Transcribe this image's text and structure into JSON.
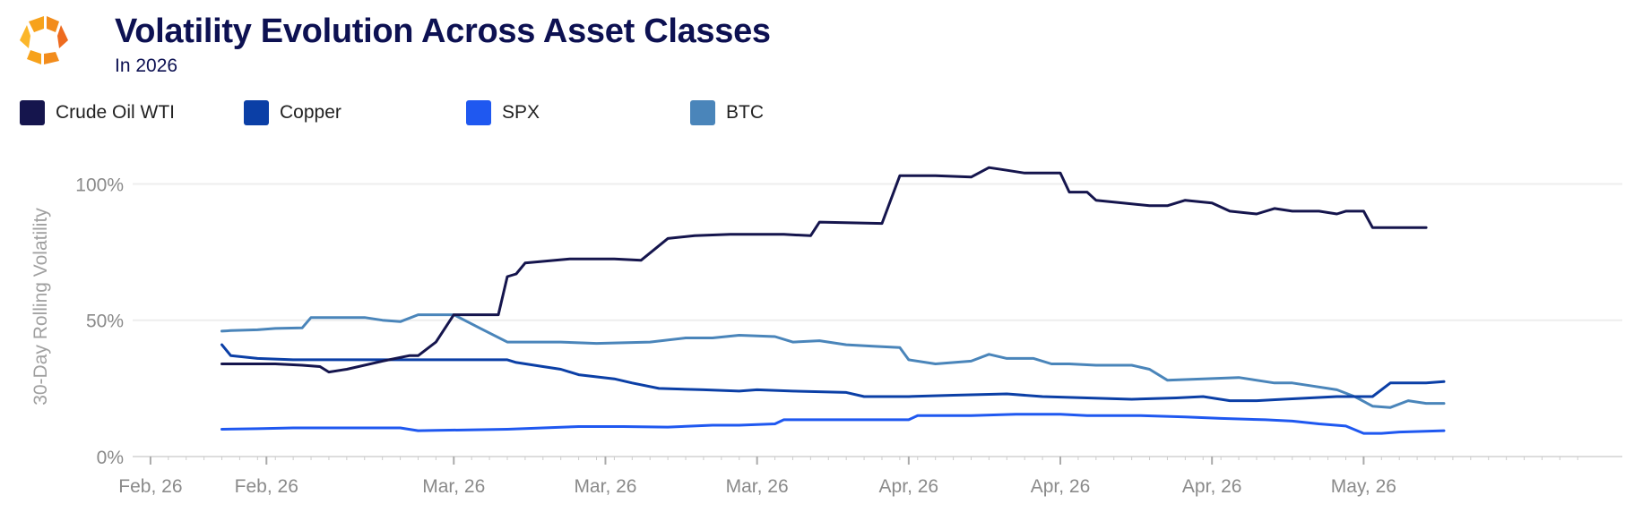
{
  "header": {
    "title": "Volatility Evolution Across Asset Classes",
    "subtitle": "In 2026",
    "logo_icon": "orange-hexagon-logo-icon"
  },
  "colors": {
    "title": "#0d1152",
    "Crude Oil WTI": "#15154d",
    "Copper": "#0b3fa6",
    "SPX": "#1f58f0",
    "BTC": "#4a85ba",
    "axis_text": "#8a8a8a",
    "grid": "#eeeeee"
  },
  "chart_data": {
    "type": "line",
    "ylabel": "30-Day Rolling Volatility",
    "xlabel": "",
    "ylim": [
      0,
      110
    ],
    "y_ticks": [
      0,
      50,
      100
    ],
    "y_tick_labels": [
      "0%",
      "50%",
      "100%"
    ],
    "x_ticks": [
      0,
      13,
      34,
      51,
      68,
      85,
      102,
      119,
      136
    ],
    "x_tick_labels": [
      "Feb, 26",
      "Feb, 26",
      "Mar, 26",
      "Mar, 26",
      "Mar, 26",
      "Apr, 26",
      "Apr, 26",
      "Apr, 26",
      "May, 26"
    ],
    "x_range": [
      -2,
      165
    ],
    "grid": "horizontal",
    "legend_position": "top-left",
    "series": [
      {
        "name": "Crude Oil WTI",
        "points": [
          [
            8,
            34
          ],
          [
            12,
            34
          ],
          [
            14,
            34
          ],
          [
            17,
            33.5
          ],
          [
            19,
            33
          ],
          [
            20,
            31
          ],
          [
            22,
            32
          ],
          [
            26,
            35
          ],
          [
            29,
            37
          ],
          [
            30,
            37
          ],
          [
            32,
            42
          ],
          [
            34,
            52
          ],
          [
            39,
            52
          ],
          [
            40,
            66
          ],
          [
            41,
            67
          ],
          [
            42,
            71
          ],
          [
            47,
            72.5
          ],
          [
            52,
            72.5
          ],
          [
            55,
            72
          ],
          [
            58,
            80
          ],
          [
            61,
            81
          ],
          [
            65,
            81.5
          ],
          [
            71,
            81.5
          ],
          [
            74,
            81
          ],
          [
            75,
            86
          ],
          [
            82,
            85.5
          ],
          [
            84,
            103
          ],
          [
            88,
            103
          ],
          [
            92,
            102.5
          ],
          [
            94,
            106
          ],
          [
            96,
            105
          ],
          [
            98,
            104
          ],
          [
            102,
            104
          ],
          [
            103,
            97
          ],
          [
            105,
            97
          ],
          [
            106,
            94
          ],
          [
            109,
            93
          ],
          [
            112,
            92
          ],
          [
            114,
            92
          ],
          [
            116,
            94
          ],
          [
            119,
            93
          ],
          [
            121,
            90
          ],
          [
            124,
            89
          ],
          [
            126,
            91
          ],
          [
            128,
            90
          ],
          [
            131,
            90
          ],
          [
            133,
            89
          ],
          [
            134,
            90
          ],
          [
            136,
            90
          ],
          [
            137,
            84
          ],
          [
            139,
            84
          ],
          [
            143,
            84
          ]
        ]
      },
      {
        "name": "Copper",
        "points": [
          [
            8,
            41
          ],
          [
            9,
            37
          ],
          [
            12,
            36
          ],
          [
            16,
            35.5
          ],
          [
            22,
            35.5
          ],
          [
            26,
            35.5
          ],
          [
            29,
            35.5
          ],
          [
            33,
            35.5
          ],
          [
            40,
            35.5
          ],
          [
            41,
            34.5
          ],
          [
            44,
            33
          ],
          [
            46,
            32
          ],
          [
            48,
            30
          ],
          [
            52,
            28.5
          ],
          [
            54,
            27
          ],
          [
            57,
            25
          ],
          [
            62,
            24.5
          ],
          [
            66,
            24
          ],
          [
            68,
            24.5
          ],
          [
            72,
            24
          ],
          [
            78,
            23.5
          ],
          [
            80,
            22
          ],
          [
            85,
            22
          ],
          [
            90,
            22.5
          ],
          [
            96,
            23
          ],
          [
            100,
            22
          ],
          [
            105,
            21.5
          ],
          [
            110,
            21
          ],
          [
            115,
            21.5
          ],
          [
            118,
            22
          ],
          [
            121,
            20.5
          ],
          [
            124,
            20.5
          ],
          [
            127,
            21
          ],
          [
            130,
            21.5
          ],
          [
            133,
            22
          ],
          [
            135,
            22
          ],
          [
            137,
            22
          ],
          [
            139,
            27
          ],
          [
            143,
            27
          ],
          [
            145,
            27.5
          ]
        ]
      },
      {
        "name": "SPX",
        "points": [
          [
            8,
            10
          ],
          [
            12,
            10.2
          ],
          [
            16,
            10.5
          ],
          [
            24,
            10.5
          ],
          [
            28,
            10.5
          ],
          [
            30,
            9.5
          ],
          [
            32,
            9.6
          ],
          [
            40,
            10
          ],
          [
            44,
            10.5
          ],
          [
            48,
            11
          ],
          [
            53,
            11
          ],
          [
            58,
            10.8
          ],
          [
            63,
            11.5
          ],
          [
            66,
            11.5
          ],
          [
            70,
            12
          ],
          [
            71,
            13.5
          ],
          [
            76,
            13.5
          ],
          [
            80,
            13.5
          ],
          [
            85,
            13.5
          ],
          [
            86,
            15
          ],
          [
            92,
            15
          ],
          [
            97,
            15.5
          ],
          [
            102,
            15.5
          ],
          [
            105,
            15
          ],
          [
            111,
            15
          ],
          [
            116,
            14.5
          ],
          [
            120,
            14
          ],
          [
            125,
            13.5
          ],
          [
            128,
            13
          ],
          [
            131,
            12
          ],
          [
            134,
            11.2
          ],
          [
            136,
            8.5
          ],
          [
            138,
            8.5
          ],
          [
            140,
            9
          ],
          [
            145,
            9.5
          ]
        ]
      },
      {
        "name": "BTC",
        "points": [
          [
            8,
            46
          ],
          [
            9,
            46.2
          ],
          [
            12,
            46.5
          ],
          [
            14,
            47
          ],
          [
            17,
            47.2
          ],
          [
            18,
            51
          ],
          [
            21,
            51
          ],
          [
            24,
            51
          ],
          [
            26,
            50
          ],
          [
            28,
            49.5
          ],
          [
            30,
            52
          ],
          [
            34,
            52
          ],
          [
            37,
            47
          ],
          [
            40,
            42
          ],
          [
            46,
            42
          ],
          [
            50,
            41.5
          ],
          [
            56,
            42
          ],
          [
            60,
            43.5
          ],
          [
            63,
            43.5
          ],
          [
            66,
            44.5
          ],
          [
            70,
            44
          ],
          [
            72,
            42
          ],
          [
            75,
            42.5
          ],
          [
            78,
            41
          ],
          [
            81,
            40.5
          ],
          [
            84,
            40
          ],
          [
            85,
            35.5
          ],
          [
            88,
            34
          ],
          [
            92,
            35
          ],
          [
            94,
            37.5
          ],
          [
            96,
            36
          ],
          [
            99,
            36
          ],
          [
            101,
            34
          ],
          [
            103,
            34
          ],
          [
            106,
            33.5
          ],
          [
            110,
            33.5
          ],
          [
            112,
            32
          ],
          [
            114,
            28
          ],
          [
            118,
            28.5
          ],
          [
            122,
            29
          ],
          [
            126,
            27
          ],
          [
            128,
            27
          ],
          [
            130,
            26
          ],
          [
            133,
            24.5
          ],
          [
            135,
            22
          ],
          [
            137,
            18.5
          ],
          [
            139,
            18
          ],
          [
            141,
            20.5
          ],
          [
            143,
            19.5
          ],
          [
            145,
            19.5
          ]
        ]
      }
    ]
  }
}
